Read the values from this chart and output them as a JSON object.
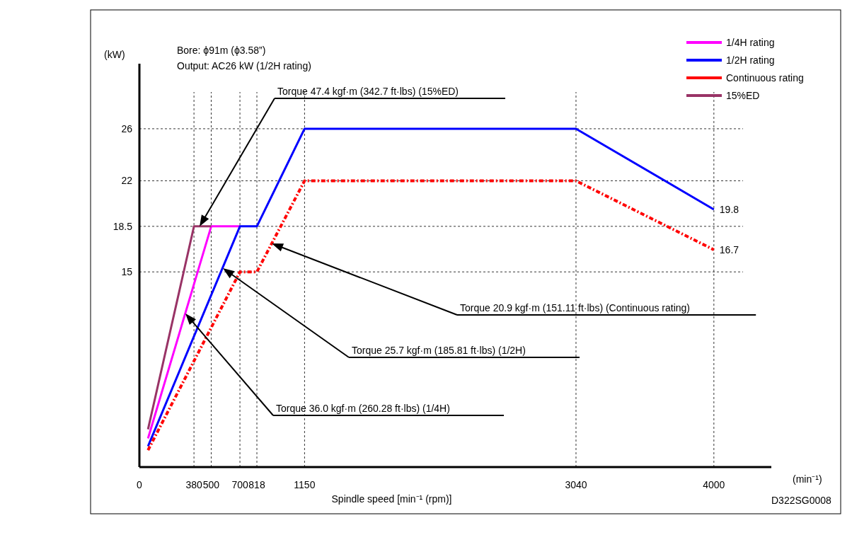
{
  "chart_data": {
    "type": "line",
    "ylabel": "(kW)",
    "xlabel": "Spindle speed [min⁻¹ (rpm)]",
    "xlim": [
      0,
      4400
    ],
    "ylim": [
      0,
      31
    ],
    "xticks": [
      0,
      380,
      500,
      700,
      818,
      1150,
      3040,
      4000
    ],
    "yticks": [
      15,
      18.5,
      22,
      26
    ],
    "grid": true,
    "legend": "top right",
    "series": [
      {
        "name": "1/4H rating",
        "color": "#ff00ff",
        "line_style": "solid",
        "x": [
          60,
          500,
          700
        ],
        "values": [
          2.2,
          18.5,
          18.5
        ]
      },
      {
        "name": "1/2H rating",
        "color": "#0000ff",
        "line_style": "solid",
        "x": [
          60,
          700,
          818,
          1150,
          3040,
          4000
        ],
        "values": [
          1.6,
          18.5,
          18.5,
          26,
          26,
          19.8
        ],
        "value_labels": [
          null,
          null,
          null,
          null,
          null,
          "19.8"
        ]
      },
      {
        "name": "Continuous rating",
        "color": "#ff0000",
        "line_style": "dashed",
        "x": [
          60,
          700,
          818,
          1150,
          3040,
          4000
        ],
        "values": [
          1.3,
          15,
          15,
          22,
          22,
          16.7
        ],
        "value_labels": [
          null,
          null,
          null,
          null,
          null,
          "16.7"
        ]
      },
      {
        "name": "15%ED",
        "color": "#993366",
        "line_style": "solid",
        "x": [
          60,
          380,
          500
        ],
        "values": [
          2.9,
          18.5,
          18.5
        ]
      }
    ],
    "annotations": [
      "Bore: ϕ91m (ϕ3.58”)",
      "Output: AC26 kW (1/2H rating)",
      "Torque 47.4 kgf·m (342.7 ft·lbs) (15%ED)",
      "Torque 20.9 kgf·m (151.11 ft·lbs) (Continuous rating)",
      "Torque 25.7 kgf·m (185.81 ft·lbs) (1/2H)",
      "Torque 36.0 kgf·m (260.28 ft·lbs) (1/4H)",
      "(min⁻¹)",
      "D322SG0008"
    ]
  }
}
